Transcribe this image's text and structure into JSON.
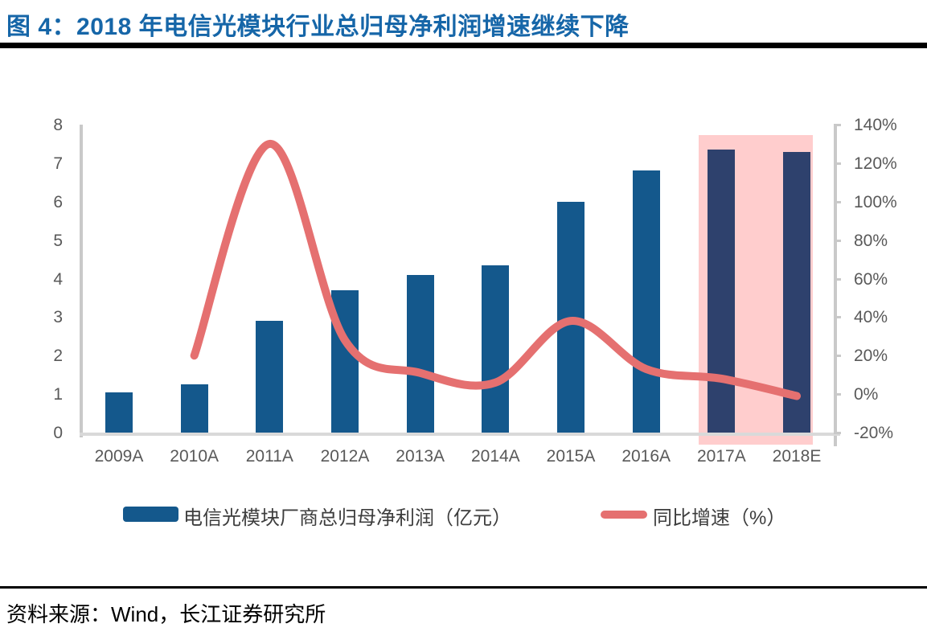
{
  "figure": {
    "title": "图 4：2018 年电信光模块行业总归母净利润增速继续下降",
    "source": "资料来源：Wind，长江证券研究所"
  },
  "legend": {
    "bars_label": "电信光模块厂商总归母净利润（亿元）",
    "line_label": "同比增速（%）"
  },
  "colors": {
    "title": "#1666a8",
    "bar": "#14588c",
    "bar_forecast": "#2e416d",
    "line": "#e57070",
    "highlight_bg": "#ffcdcd",
    "axis_text": "#595959"
  },
  "chart_data": {
    "type": "bar",
    "subtype": "combo-bar-line-dual-axis",
    "categories": [
      "2009A",
      "2010A",
      "2011A",
      "2012A",
      "2013A",
      "2014A",
      "2015A",
      "2016A",
      "2017A",
      "2018E"
    ],
    "series": [
      {
        "name": "电信光模块厂商总归母净利润（亿元）",
        "type": "bar",
        "axis": "left",
        "values": [
          1.05,
          1.26,
          2.9,
          3.7,
          4.1,
          4.35,
          6.0,
          6.8,
          7.35,
          7.3
        ]
      },
      {
        "name": "同比增速（%）",
        "type": "line",
        "axis": "right",
        "values": [
          null,
          20,
          130,
          28,
          11,
          6,
          38,
          13,
          8,
          -1
        ]
      }
    ],
    "left_axis": {
      "min": 0,
      "max": 8,
      "step": 1,
      "tick_labels": [
        "8",
        "7",
        "6",
        "5",
        "4",
        "3",
        "2",
        "1",
        "0"
      ]
    },
    "right_axis": {
      "min": -20,
      "max": 140,
      "step": 20,
      "tick_labels": [
        "140%",
        "120%",
        "100%",
        "80%",
        "60%",
        "40%",
        "20%",
        "0%",
        "-20%"
      ]
    },
    "highlight_categories": [
      "2017A",
      "2018E"
    ],
    "grid": false,
    "legend_position": "bottom",
    "smooth_line": true
  }
}
